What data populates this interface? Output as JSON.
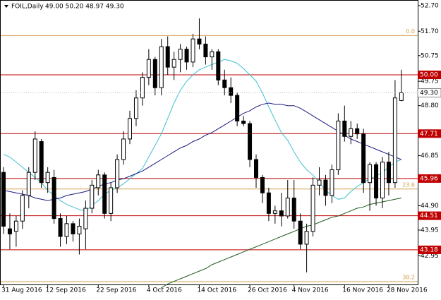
{
  "chart_data": {
    "type": "candlestick",
    "title": "FOIL,Daily",
    "subtitle": "49.00 50.20 48.97 49.30",
    "categories": [
      "31 Aug 2016",
      null,
      null,
      null,
      null,
      null,
      null,
      "12 Sep 2016",
      null,
      null,
      null,
      null,
      null,
      null,
      null,
      "22 Sep 2016",
      null,
      null,
      null,
      null,
      null,
      null,
      null,
      "4 Oct 2016",
      null,
      null,
      null,
      null,
      null,
      null,
      null,
      "14 Oct 2016",
      null,
      null,
      null,
      null,
      null,
      null,
      null,
      "26 Oct 2016",
      null,
      null,
      null,
      null,
      null,
      null,
      "4 Nov 2016",
      null,
      null,
      null,
      null,
      null,
      null,
      null,
      "16 Nov 2016",
      null,
      null,
      null,
      null,
      null,
      null,
      "28 Nov 2016",
      null,
      null
    ],
    "open": [
      46.2,
      44.0,
      43.9,
      44.3,
      45.3,
      46.2,
      47.4,
      45.8,
      46.0,
      44.4,
      43.7,
      44.2,
      43.8,
      44.0,
      44.8,
      45.6,
      46.1,
      44.6,
      45.6,
      46.7,
      47.5,
      48.3,
      49.1,
      49.9,
      50.6,
      49.5,
      51.1,
      50.3,
      50.6,
      51.0,
      50.5,
      51.4,
      51.2,
      50.7,
      50.9,
      49.8,
      49.5,
      49.2,
      48.2,
      48.1,
      46.7,
      46.0,
      45.4,
      44.6,
      44.7,
      44.5,
      45.2,
      44.3,
      43.4,
      43.9,
      45.7,
      45.9,
      45.3,
      46.3,
      48.2,
      47.6,
      47.9,
      47.7,
      45.8,
      46.5,
      45.2,
      46.6,
      45.8,
      49.0
    ],
    "high": [
      46.4,
      44.6,
      44.5,
      45.5,
      46.4,
      47.8,
      47.5,
      46.4,
      46.3,
      44.6,
      44.5,
      44.3,
      44.4,
      45.1,
      45.9,
      46.3,
      46.2,
      45.8,
      46.9,
      47.8,
      48.6,
      49.4,
      50.1,
      51.0,
      50.7,
      51.4,
      51.5,
      50.9,
      51.2,
      51.1,
      51.6,
      52.2,
      51.5,
      51.0,
      51.0,
      50.2,
      49.9,
      49.3,
      48.4,
      48.2,
      46.9,
      46.1,
      45.6,
      44.9,
      45.4,
      45.9,
      45.9,
      44.6,
      44.2,
      46.0,
      46.4,
      46.1,
      46.5,
      48.5,
      48.8,
      48.2,
      48.1,
      47.9,
      46.6,
      46.6,
      46.8,
      47.0,
      49.8,
      50.2
    ],
    "low": [
      43.8,
      43.2,
      43.3,
      44.0,
      44.8,
      45.9,
      45.6,
      45.4,
      44.2,
      43.3,
      43.4,
      43.5,
      43.0,
      43.2,
      44.6,
      45.3,
      44.4,
      44.3,
      45.4,
      46.5,
      47.3,
      48.0,
      48.8,
      49.6,
      49.2,
      49.2,
      50.0,
      49.8,
      50.1,
      50.2,
      50.3,
      51.0,
      50.4,
      50.2,
      49.6,
      49.2,
      48.9,
      48.0,
      48.0,
      46.4,
      45.6,
      45.0,
      44.3,
      44.2,
      44.1,
      44.4,
      44.0,
      43.2,
      42.3,
      43.7,
      45.3,
      44.9,
      45.0,
      46.1,
      47.4,
      47.3,
      47.5,
      45.4,
      44.7,
      44.9,
      44.8,
      45.3,
      45.6,
      48.97
    ],
    "close": [
      44.1,
      43.8,
      44.3,
      45.3,
      46.2,
      47.5,
      45.8,
      46.2,
      44.4,
      43.7,
      44.2,
      43.8,
      44.1,
      44.8,
      45.7,
      46.1,
      44.6,
      45.6,
      46.7,
      47.5,
      48.3,
      49.1,
      49.9,
      50.6,
      49.5,
      51.1,
      50.3,
      50.6,
      51.0,
      50.5,
      51.4,
      51.2,
      50.7,
      50.9,
      49.8,
      49.5,
      49.2,
      48.2,
      48.1,
      46.7,
      46.0,
      45.4,
      44.6,
      44.7,
      44.5,
      45.2,
      44.3,
      43.4,
      43.9,
      45.7,
      45.9,
      45.3,
      46.3,
      48.2,
      47.6,
      47.9,
      47.7,
      45.8,
      46.5,
      45.2,
      46.6,
      45.8,
      49.1,
      49.3
    ],
    "series": [
      {
        "color": "#40c0d0",
        "values": [
          46.9,
          46.8,
          46.6,
          46.4,
          46.2,
          46.0,
          45.8,
          45.5,
          45.3,
          45.1,
          44.95,
          44.85,
          44.75,
          44.7,
          44.9,
          45.1,
          45.35,
          45.5,
          45.6,
          45.75,
          45.95,
          46.15,
          46.35,
          46.8,
          47.25,
          47.7,
          48.3,
          48.9,
          49.4,
          49.75,
          50.0,
          50.2,
          50.3,
          50.4,
          50.5,
          50.6,
          50.55,
          50.45,
          50.25,
          50.0,
          49.75,
          49.3,
          48.75,
          48.25,
          47.75,
          47.45,
          47.0,
          46.6,
          46.3,
          46.1,
          45.8,
          45.5,
          45.3,
          45.15,
          45.2,
          45.45,
          45.65,
          45.8,
          45.95,
          46.05,
          46.2,
          46.4,
          46.6,
          46.7
        ]
      },
      {
        "color": "#1a1a80",
        "values": [
          45.5,
          45.45,
          45.4,
          45.35,
          45.3,
          45.2,
          45.15,
          45.1,
          45.15,
          45.2,
          45.3,
          45.35,
          45.4,
          45.45,
          45.55,
          45.65,
          45.75,
          45.8,
          45.9,
          45.95,
          46.05,
          46.15,
          46.25,
          46.4,
          46.55,
          46.7,
          46.85,
          47.0,
          47.15,
          47.25,
          47.4,
          47.5,
          47.65,
          47.75,
          47.9,
          48.05,
          48.2,
          48.35,
          48.5,
          48.6,
          48.75,
          48.85,
          48.9,
          48.85,
          48.85,
          48.8,
          48.8,
          48.7,
          48.55,
          48.4,
          48.25,
          48.1,
          47.95,
          47.8,
          47.65,
          47.5,
          47.4,
          47.3,
          47.2,
          47.1,
          47.0,
          46.9,
          46.8,
          46.7
        ]
      },
      {
        "color": "#1e5a1e",
        "values": [
          null,
          null,
          null,
          null,
          null,
          null,
          null,
          null,
          null,
          null,
          null,
          null,
          null,
          null,
          null,
          null,
          null,
          null,
          null,
          null,
          null,
          null,
          null,
          null,
          null,
          41.7,
          41.85,
          41.95,
          42.05,
          42.15,
          42.25,
          42.35,
          42.45,
          42.6,
          42.7,
          42.8,
          42.9,
          43.0,
          43.1,
          43.2,
          43.3,
          43.4,
          43.5,
          43.6,
          43.7,
          43.8,
          43.9,
          44.0,
          44.1,
          44.15,
          44.25,
          44.35,
          44.45,
          44.5,
          44.6,
          44.7,
          44.8,
          44.85,
          44.95,
          45.0,
          45.05,
          45.1,
          45.15,
          45.2
        ]
      }
    ],
    "levels": [
      {
        "value": 50,
        "label": "50.00"
      },
      {
        "value": 47.71,
        "label": "47.71"
      },
      {
        "value": 45.96,
        "label": "45.96"
      },
      {
        "value": 44.51,
        "label": "44.51"
      },
      {
        "value": 43.18,
        "label": "43.18"
      }
    ],
    "level_color": "#c00000",
    "fib_levels": [
      {
        "value": 51.53,
        "label": "0.0"
      },
      {
        "value": 45.55,
        "label": "23.6"
      },
      {
        "value": 41.94,
        "label": "38.2"
      }
    ],
    "fib_color": "#d4a050",
    "last_price": {
      "value": 49.3,
      "label": "49.30"
    },
    "ylim": [
      41.83,
      52.89
    ],
    "yticks": [
      {
        "value": 52.7,
        "label": "52.70"
      },
      {
        "value": 51.7,
        "label": "51.70"
      },
      50.75,
      49.75,
      {
        "value": 48.8,
        "label": "48.80"
      },
      46.85,
      {
        "value": 44.9,
        "label": "44.90"
      },
      43.95,
      42.95
    ]
  }
}
